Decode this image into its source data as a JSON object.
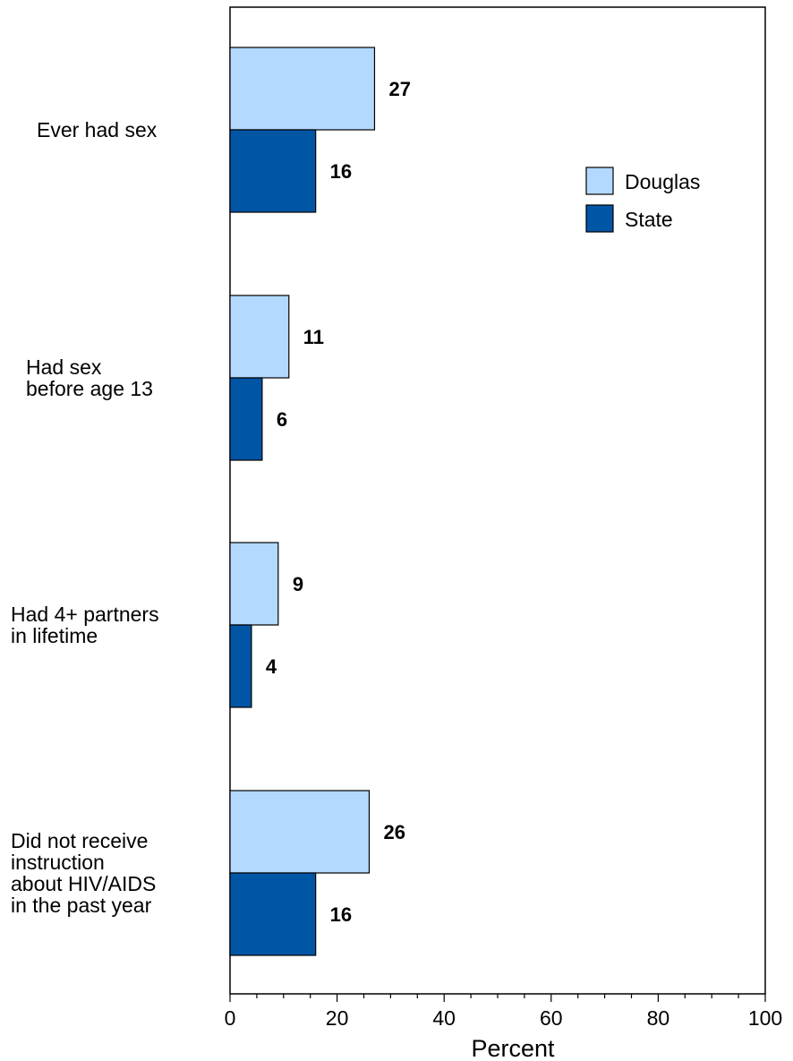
{
  "chart_data": {
    "type": "bar",
    "orientation": "horizontal",
    "categories": [
      [
        "Ever had sex"
      ],
      [
        "Had sex",
        "before age 13"
      ],
      [
        "Had 4+ partners",
        "in lifetime"
      ],
      [
        "Did not receive",
        "instruction",
        "about HIV/AIDS",
        "in the past year"
      ]
    ],
    "series": [
      {
        "name": "Douglas",
        "color": "#b3d9ff",
        "values": [
          27,
          11,
          9,
          26
        ]
      },
      {
        "name": "State",
        "color": "#0055a5",
        "values": [
          16,
          6,
          4,
          16
        ]
      }
    ],
    "xlabel": "Percent",
    "xlim": [
      0,
      100
    ],
    "xticks": [
      0,
      20,
      40,
      60,
      80,
      100
    ],
    "legend_position": "top-right",
    "grid": false
  }
}
